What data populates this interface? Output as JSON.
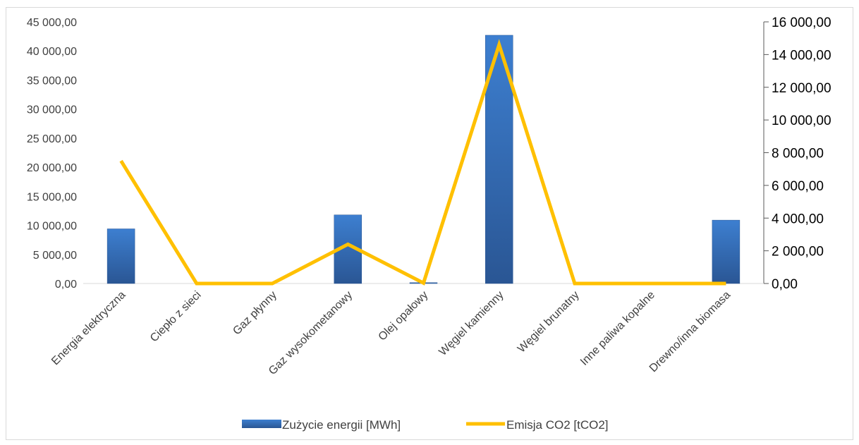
{
  "chart_data": {
    "type": "bar",
    "categories": [
      "Energia elektryczna",
      "Ciepło z sieci",
      "Gaz płynny",
      "Gaz wysokometanowy",
      "Olej opałowy",
      "Węgiel kamienny",
      "Węgiel brunatny",
      "Inne paliwa kopalne",
      "Drewno/inna biomasa"
    ],
    "series": [
      {
        "name": "Zużycie energii [MWh]",
        "kind": "bar",
        "axis": "left",
        "color": "#2e62a6",
        "values": [
          9400,
          0,
          0,
          11800,
          150,
          42700,
          0,
          0,
          10900
        ]
      },
      {
        "name": "Emisja CO2 [tCO2]",
        "kind": "line",
        "axis": "right",
        "color": "#ffc000",
        "values": [
          7500,
          0,
          0,
          2400,
          30,
          14600,
          0,
          0,
          0
        ]
      }
    ],
    "left_axis": {
      "ylim": [
        0,
        45000
      ],
      "ticks": [
        "0,00",
        "5 000,00",
        "10 000,00",
        "15 000,00",
        "20 000,00",
        "25 000,00",
        "30 000,00",
        "35 000,00",
        "40 000,00",
        "45 000,00"
      ]
    },
    "right_axis": {
      "ylim": [
        0,
        16000
      ],
      "ticks": [
        "0,00",
        "2 000,00",
        "4 000,00",
        "6 000,00",
        "8 000,00",
        "10 000,00",
        "12 000,00",
        "14 000,00",
        "16 000,00"
      ]
    },
    "grid": false,
    "legend_position": "bottom"
  }
}
